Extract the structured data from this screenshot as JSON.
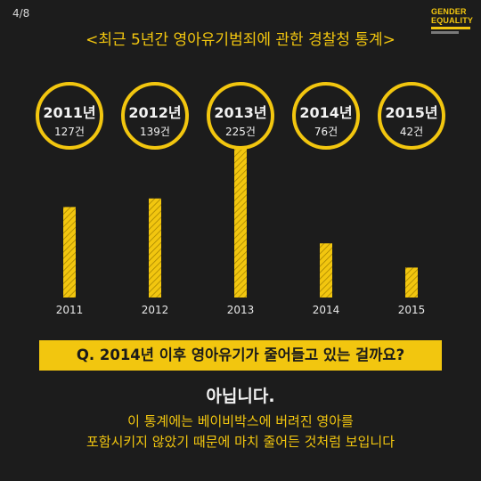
{
  "page_number": "4/8",
  "logo": {
    "line1": "GENDER",
    "line2": "EQUALITY"
  },
  "title": "<최근 5년간 영아유기범죄에 관한 경찰청 통계>",
  "colors": {
    "accent": "#f2c60f",
    "background": "#1c1c1c",
    "text_light": "#f2f2f2"
  },
  "chart_data": {
    "type": "bar",
    "categories": [
      "2011",
      "2012",
      "2013",
      "2014",
      "2015"
    ],
    "values": [
      127,
      139,
      225,
      76,
      42
    ],
    "value_labels": [
      "127건",
      "139건",
      "225건",
      "76건",
      "42건"
    ],
    "bubble_years": [
      "2011년",
      "2012년",
      "2013년",
      "2014년",
      "2015년"
    ],
    "ylim": [
      0,
      240
    ],
    "grid": false,
    "highlight_index": 2
  },
  "question": "Q. 2014년 이후 영아유기가 줄어들고 있는 걸까요?",
  "answer": "아닙니다.",
  "description": [
    "이 통계에는 베이비박스에 버려진 영아를",
    "포함시키지 않았기 때문에 마치 줄어든 것처럼 보입니다"
  ]
}
